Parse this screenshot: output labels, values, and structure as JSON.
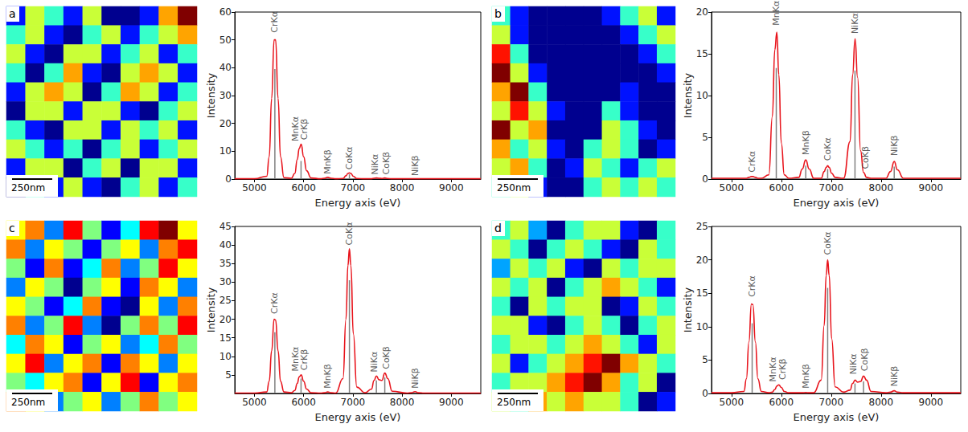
{
  "chart_data": [
    {
      "type": "line",
      "panel": "a",
      "color": "#e8141c",
      "map": {
        "type": "heatmap",
        "scale_bar": "250nm",
        "cells": [
          [
            2,
            5,
            4,
            2,
            5,
            1,
            1,
            2,
            6,
            8
          ],
          [
            4,
            5,
            2,
            1,
            4,
            5,
            2,
            4,
            5,
            6
          ],
          [
            5,
            2,
            1,
            5,
            5,
            2,
            4,
            5,
            2,
            4
          ],
          [
            4,
            1,
            4,
            6,
            2,
            1,
            5,
            6,
            5,
            2
          ],
          [
            2,
            5,
            6,
            5,
            1,
            4,
            6,
            5,
            2,
            4
          ],
          [
            1,
            5,
            5,
            2,
            5,
            5,
            2,
            1,
            4,
            5
          ],
          [
            4,
            2,
            1,
            5,
            5,
            2,
            5,
            4,
            5,
            2
          ],
          [
            5,
            4,
            2,
            4,
            1,
            4,
            5,
            2,
            4,
            5
          ],
          [
            2,
            5,
            5,
            1,
            4,
            5,
            1,
            5,
            5,
            2
          ],
          [
            1,
            4,
            2,
            5,
            2,
            1,
            4,
            5,
            2,
            4
          ]
        ]
      },
      "x_label": "Energy axis (eV)",
      "y_label": "Intensity",
      "x": [
        4600,
        5000,
        5250,
        5300,
        5350,
        5400,
        5430,
        5480,
        5530,
        5600,
        5750,
        5820,
        5870,
        5910,
        5950,
        6000,
        6060,
        6150,
        6350,
        6420,
        6490,
        6560,
        6650,
        6800,
        6860,
        6900,
        6930,
        6960,
        7010,
        7080,
        7250,
        7380,
        7430,
        7480,
        7530,
        7590,
        7650,
        7710,
        7800,
        8100,
        8190,
        8265,
        8330,
        8450,
        9000,
        9600
      ],
      "values": [
        0.1,
        0.1,
        1,
        8,
        29,
        50,
        50,
        29,
        8,
        0.5,
        0.3,
        2,
        7,
        11,
        12.5,
        8,
        3,
        0.4,
        0.1,
        0.3,
        0.6,
        0.3,
        0.1,
        0.2,
        1.2,
        2,
        2.2,
        2,
        1,
        0.2,
        0.1,
        0.1,
        0.3,
        0.4,
        0.3,
        0.2,
        0.4,
        0.2,
        0.1,
        0.1,
        0.1,
        0.1,
        0.1,
        0.1,
        0.1,
        0.1
      ],
      "references": {
        "type": "bar",
        "color": "#808080",
        "x": [
          5415,
          5947,
          6930
        ],
        "values": [
          39.5,
          6.5,
          1.7
        ]
      },
      "annotations": [
        {
          "text": "CrKα",
          "x": 5415,
          "y": 52
        },
        {
          "text": "MnKα",
          "x": 5840,
          "y": 13
        },
        {
          "text": "CrKβ",
          "x": 6020,
          "y": 13.5
        },
        {
          "text": "MnKβ",
          "x": 6490,
          "y": 1.2
        },
        {
          "text": "CoKα",
          "x": 6930,
          "y": 2.8
        },
        {
          "text": "NiKα",
          "x": 7450,
          "y": 1
        },
        {
          "text": "CoKβ",
          "x": 7680,
          "y": 1
        },
        {
          "text": "NiKβ",
          "x": 8265,
          "y": 0.6
        }
      ],
      "xlim": [
        4600,
        9600
      ],
      "xticks": [
        5000,
        6000,
        7000,
        8000,
        9000
      ],
      "ylim": [
        0,
        60
      ],
      "yticks": [
        0,
        10,
        20,
        30,
        40,
        50,
        60
      ]
    },
    {
      "type": "line",
      "panel": "b",
      "color": "#e8141c",
      "map": {
        "type": "heatmap",
        "scale_bar": "250nm",
        "cells": [
          [
            4,
            2,
            1,
            1,
            1,
            1,
            2,
            4,
            5,
            2
          ],
          [
            5,
            2,
            1,
            1,
            1,
            1,
            1,
            2,
            4,
            5
          ],
          [
            7,
            4,
            1,
            1,
            1,
            1,
            1,
            1,
            2,
            4
          ],
          [
            8,
            5,
            2,
            1,
            1,
            1,
            1,
            1,
            1,
            2
          ],
          [
            6,
            8,
            4,
            1,
            1,
            1,
            1,
            2,
            1,
            1
          ],
          [
            5,
            7,
            5,
            2,
            1,
            1,
            4,
            2,
            1,
            1
          ],
          [
            8,
            5,
            6,
            1,
            1,
            1,
            5,
            4,
            2,
            1
          ],
          [
            6,
            4,
            5,
            2,
            1,
            4,
            5,
            4,
            1,
            2
          ],
          [
            5,
            6,
            4,
            1,
            2,
            5,
            4,
            2,
            4,
            5
          ],
          [
            4,
            5,
            2,
            1,
            1,
            4,
            5,
            4,
            5,
            4
          ]
        ]
      },
      "x_label": "Energy axis (eV)",
      "y_label": "Intensity",
      "x": [
        4600,
        5000,
        5250,
        5300,
        5350,
        5400,
        5430,
        5480,
        5530,
        5600,
        5750,
        5820,
        5870,
        5910,
        5950,
        6000,
        6060,
        6150,
        6350,
        6420,
        6490,
        6560,
        6650,
        6800,
        6860,
        6900,
        6930,
        6960,
        7010,
        7080,
        7250,
        7380,
        7430,
        7480,
        7530,
        7590,
        7650,
        7710,
        7800,
        8100,
        8190,
        8265,
        8330,
        8450,
        9000,
        9600
      ],
      "values": [
        0.1,
        0.1,
        0.1,
        0.1,
        0.2,
        0.3,
        0.3,
        0.2,
        0.1,
        0.1,
        0.5,
        7.5,
        15.5,
        17.6,
        12.5,
        4.3,
        0.5,
        0.1,
        0.2,
        1.2,
        2.3,
        1.2,
        0.1,
        0.1,
        0.9,
        1.4,
        1.6,
        1.4,
        0.7,
        0.2,
        0.1,
        4.5,
        12.5,
        16.8,
        12.2,
        3.4,
        0.8,
        0.2,
        0.1,
        0.1,
        0.9,
        2.1,
        1.1,
        0.1,
        0.1,
        0.1
      ],
      "references": {
        "type": "bar",
        "color": "#808080",
        "x": [
          5899,
          6490,
          6930,
          7478,
          8265
        ],
        "values": [
          13.3,
          1.6,
          1.2,
          13,
          1.5
        ]
      },
      "annotations": [
        {
          "text": "CrKα",
          "x": 5415,
          "y": 0.6
        },
        {
          "text": "MnKα",
          "x": 5899,
          "y": 18.2
        },
        {
          "text": "MnKβ",
          "x": 6490,
          "y": 2.7
        },
        {
          "text": "CoKα",
          "x": 6930,
          "y": 2
        },
        {
          "text": "NiKα",
          "x": 7478,
          "y": 17.2
        },
        {
          "text": "CoKβ",
          "x": 7690,
          "y": 1
        },
        {
          "text": "NiKβ",
          "x": 8265,
          "y": 2.6
        }
      ],
      "xlim": [
        4600,
        9600
      ],
      "xticks": [
        5000,
        6000,
        7000,
        8000,
        9000
      ],
      "ylim": [
        0,
        20
      ],
      "yticks": [
        0,
        5,
        10,
        15,
        20
      ]
    },
    {
      "type": "line",
      "panel": "c",
      "color": "#e8141c",
      "map": {
        "type": "heatmap",
        "scale_bar": "250nm",
        "cells": [
          [
            6,
            7,
            3,
            8,
            5,
            2,
            4,
            8,
            9,
            6
          ],
          [
            7,
            3,
            6,
            5,
            2,
            5,
            6,
            3,
            7,
            8
          ],
          [
            5,
            2,
            7,
            2,
            4,
            7,
            3,
            5,
            8,
            6
          ],
          [
            3,
            6,
            5,
            1,
            5,
            6,
            2,
            7,
            6,
            3
          ],
          [
            6,
            5,
            2,
            4,
            7,
            2,
            1,
            6,
            3,
            7
          ],
          [
            7,
            3,
            5,
            8,
            3,
            1,
            5,
            7,
            5,
            8
          ],
          [
            4,
            7,
            6,
            2,
            5,
            6,
            3,
            4,
            7,
            5
          ],
          [
            6,
            8,
            3,
            6,
            7,
            2,
            7,
            6,
            3,
            6
          ],
          [
            5,
            4,
            6,
            7,
            2,
            6,
            8,
            2,
            6,
            7
          ],
          [
            7,
            6,
            3,
            5,
            6,
            3,
            5,
            7,
            5,
            6
          ]
        ]
      },
      "x_label": "Energy axis (eV)",
      "y_label": "Intensity",
      "x": [
        4600,
        5000,
        5250,
        5300,
        5350,
        5400,
        5430,
        5480,
        5530,
        5600,
        5750,
        5820,
        5870,
        5910,
        5950,
        6000,
        6060,
        6150,
        6350,
        6420,
        6490,
        6560,
        6650,
        6800,
        6860,
        6900,
        6930,
        6960,
        7010,
        7080,
        7250,
        7380,
        7430,
        7480,
        7530,
        7590,
        7650,
        7710,
        7800,
        8100,
        8190,
        8265,
        8330,
        8450,
        9000,
        9600
      ],
      "values": [
        0.1,
        0.1,
        0.4,
        3.3,
        11.5,
        20,
        19.8,
        11.5,
        3.3,
        0.4,
        0.2,
        0.8,
        2.7,
        4.5,
        5,
        3.3,
        1.2,
        0.2,
        0.1,
        0.2,
        0.4,
        0.2,
        0.1,
        4,
        20,
        34.5,
        39,
        34.5,
        16,
        1.7,
        0.2,
        1.2,
        3.5,
        4.7,
        3.7,
        3.5,
        5.5,
        4,
        0.6,
        0.1,
        0.2,
        0.5,
        0.2,
        0.1,
        0.1,
        0.1
      ],
      "references": {
        "type": "bar",
        "color": "#808080",
        "x": [
          5415,
          5947,
          6930,
          7478,
          7649
        ],
        "values": [
          16.5,
          4,
          30.5,
          3.5,
          4.3
        ]
      },
      "annotations": [
        {
          "text": "CrKα",
          "x": 5415,
          "y": 21
        },
        {
          "text": "MnKα",
          "x": 5840,
          "y": 5.5
        },
        {
          "text": "CrKβ",
          "x": 6020,
          "y": 5.8
        },
        {
          "text": "MnKβ",
          "x": 6490,
          "y": 0.9
        },
        {
          "text": "CoKα",
          "x": 6930,
          "y": 39.5
        },
        {
          "text": "NiKα",
          "x": 7440,
          "y": 5.3
        },
        {
          "text": "CoKβ",
          "x": 7680,
          "y": 6.1
        },
        {
          "text": "NiKβ",
          "x": 8265,
          "y": 0.9
        }
      ],
      "xlim": [
        4600,
        9600
      ],
      "xticks": [
        5000,
        6000,
        7000,
        8000,
        9000
      ],
      "ylim": [
        0,
        45
      ],
      "yticks": [
        5,
        10,
        15,
        20,
        25,
        30,
        35,
        40,
        45
      ]
    },
    {
      "type": "line",
      "panel": "d",
      "color": "#e8141c",
      "map": {
        "type": "heatmap",
        "scale_bar": "250nm",
        "cells": [
          [
            4,
            5,
            3,
            1,
            4,
            5,
            5,
            2,
            1,
            4
          ],
          [
            5,
            4,
            1,
            4,
            5,
            4,
            2,
            1,
            5,
            4
          ],
          [
            3,
            5,
            4,
            5,
            2,
            1,
            5,
            4,
            5,
            5
          ],
          [
            5,
            4,
            5,
            1,
            4,
            5,
            6,
            5,
            4,
            2
          ],
          [
            4,
            1,
            5,
            4,
            5,
            5,
            1,
            2,
            5,
            4
          ],
          [
            5,
            5,
            2,
            1,
            4,
            5,
            4,
            1,
            4,
            5
          ],
          [
            4,
            5,
            5,
            4,
            5,
            6,
            5,
            4,
            2,
            5
          ],
          [
            5,
            2,
            4,
            5,
            6,
            7,
            8,
            6,
            5,
            4
          ],
          [
            4,
            5,
            5,
            6,
            7,
            8,
            6,
            4,
            5,
            1
          ],
          [
            5,
            4,
            6,
            5,
            6,
            5,
            5,
            4,
            1,
            2
          ]
        ]
      },
      "x_label": "Energy axis (eV)",
      "y_label": "Intensity",
      "x": [
        4600,
        5000,
        5250,
        5300,
        5350,
        5400,
        5430,
        5480,
        5530,
        5600,
        5750,
        5820,
        5870,
        5910,
        5950,
        6000,
        6060,
        6150,
        6350,
        6420,
        6490,
        6560,
        6650,
        6800,
        6860,
        6900,
        6930,
        6960,
        7010,
        7080,
        7250,
        7380,
        7430,
        7480,
        7530,
        7590,
        7650,
        7710,
        7800,
        8100,
        8190,
        8265,
        8330,
        8450,
        9000,
        9600
      ],
      "values": [
        0.1,
        0.1,
        0.3,
        2.2,
        7.7,
        13.4,
        13.3,
        7.7,
        2.2,
        0.3,
        0.1,
        0.2,
        0.6,
        1.1,
        1.3,
        0.9,
        0.3,
        0.1,
        0.1,
        0.1,
        0.15,
        0.1,
        0.1,
        2,
        10.2,
        17.7,
        20,
        17.7,
        8.2,
        1,
        0.2,
        0.5,
        1.5,
        2,
        1.7,
        1.8,
        2.6,
        2,
        0.3,
        0.1,
        0.2,
        0.4,
        0.2,
        0.1,
        0.1,
        0.1
      ],
      "references": {
        "type": "bar",
        "color": "#808080",
        "x": [
          5415,
          6930,
          7478,
          7649
        ],
        "values": [
          10.5,
          15.8,
          1.5,
          1.8
        ]
      },
      "annotations": [
        {
          "text": "CrKα",
          "x": 5415,
          "y": 14.2
        },
        {
          "text": "MnKα",
          "x": 5840,
          "y": 1.5
        },
        {
          "text": "CrKβ",
          "x": 6020,
          "y": 1.8
        },
        {
          "text": "MnKβ",
          "x": 6490,
          "y": 0.5
        },
        {
          "text": "CoKα",
          "x": 6930,
          "y": 20.5
        },
        {
          "text": "NiKα",
          "x": 7440,
          "y": 2.6
        },
        {
          "text": "CoKβ",
          "x": 7680,
          "y": 3.1
        },
        {
          "text": "NiKβ",
          "x": 8265,
          "y": 0.8
        }
      ],
      "xlim": [
        4600,
        9600
      ],
      "xticks": [
        5000,
        6000,
        7000,
        8000,
        9000
      ],
      "ylim": [
        0,
        25
      ],
      "yticks": [
        0,
        5,
        10,
        15,
        20,
        25
      ]
    }
  ]
}
